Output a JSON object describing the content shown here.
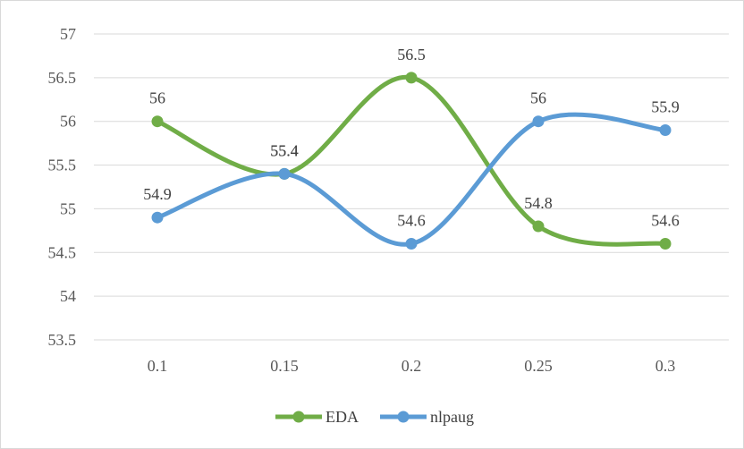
{
  "chart_data": {
    "type": "line",
    "title": "",
    "xlabel": "",
    "ylabel": "",
    "categories": [
      "0.1",
      "0.15",
      "0.2",
      "0.25",
      "0.3"
    ],
    "ylim": [
      53.5,
      57
    ],
    "yticks": [
      "53.5",
      "54",
      "54.5",
      "55",
      "55.5",
      "56",
      "56.5",
      "57"
    ],
    "grid": "horizontal",
    "smooth": true,
    "legend_position": "bottom",
    "series": [
      {
        "name": "EDA",
        "color": "#70ad47",
        "values": [
          56,
          55.4,
          56.5,
          54.8,
          54.6
        ],
        "labels": [
          "56",
          "55.4",
          "56.5",
          "54.8",
          "54.6"
        ]
      },
      {
        "name": "nlpaug",
        "color": "#5b9bd5",
        "values": [
          54.9,
          55.4,
          54.6,
          56,
          55.9
        ],
        "labels": [
          "54.9",
          "55.4",
          "54.6",
          "56",
          "55.9"
        ]
      }
    ]
  }
}
